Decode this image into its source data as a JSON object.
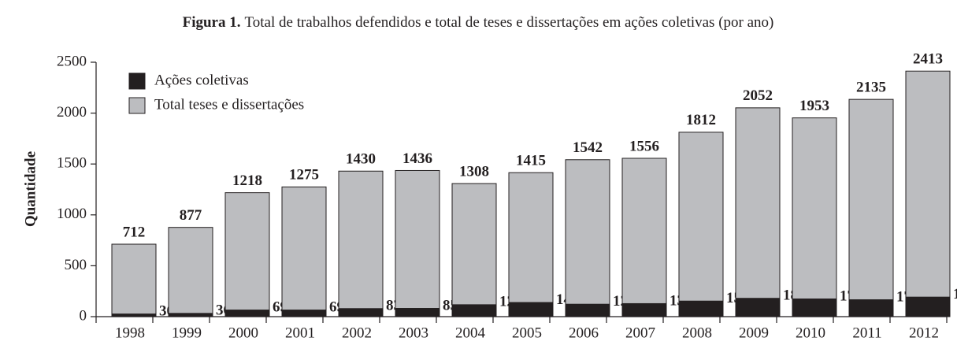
{
  "chart_data": {
    "type": "bar",
    "title_label": "Figura 1.",
    "title": "Total de trabalhos defendidos e total de teses e dissertações em ações coletivas (por ano)",
    "ylabel": "Quantidade",
    "categories": [
      "1998",
      "1999",
      "2000",
      "2001",
      "2002",
      "2003",
      "2004",
      "2005",
      "2006",
      "2007",
      "2008",
      "2009",
      "2010",
      "2011",
      "2012"
    ],
    "series": [
      {
        "name": "Ações coletivas",
        "color": "#231f20",
        "values": [
          30,
          36,
          69,
          69,
          83,
          85,
          121,
          143,
          126,
          132,
          157,
          184,
          178,
          170,
          196
        ]
      },
      {
        "name": "Total teses e dissertações",
        "color": "#bcbdc0",
        "values": [
          712,
          877,
          1218,
          1275,
          1430,
          1436,
          1308,
          1415,
          1542,
          1556,
          1812,
          2052,
          1953,
          2135,
          2413
        ]
      }
    ],
    "ylim": [
      0,
      2500
    ],
    "yticks": [
      0,
      500,
      1000,
      1500,
      2000,
      2500
    ],
    "legend": "upper left"
  }
}
